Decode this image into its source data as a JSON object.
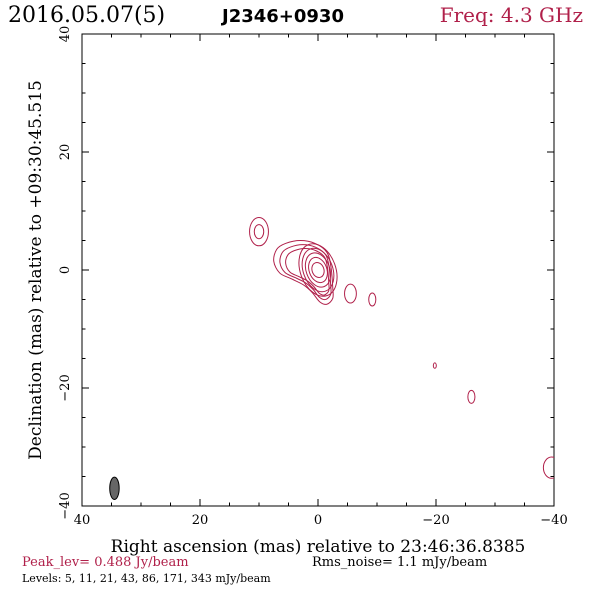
{
  "header": {
    "date": "2016.05.07(5)",
    "source": "J2346+0930",
    "freq": "Freq: 4.3 GHz"
  },
  "footer": {
    "peak": "Peak_lev=  0.488 Jy/beam",
    "rms": "Rms_noise=   1.1 mJy/beam",
    "levels": "Levels:   5,  11,  21,  43,  86,  171,  343 mJy/beam"
  },
  "colors": {
    "accent": "#b0204a",
    "contour": "#b0204a",
    "beam": "#666666"
  },
  "chart_data": {
    "type": "contour",
    "xlabel": "Right ascension (mas) relative to 23:46:36.8385",
    "ylabel": "Declination (mas) relative to +09:30:45.515",
    "xlim": [
      40,
      -40
    ],
    "ylim": [
      -40,
      40
    ],
    "x_ticks": [
      40,
      20,
      0,
      -20,
      -40
    ],
    "y_ticks": [
      -40,
      -20,
      0,
      20,
      40
    ],
    "levels_mJy": [
      5,
      11,
      21,
      43,
      86,
      171,
      343
    ],
    "peak_Jy_per_beam": 0.488,
    "rms_mJy_per_beam": 1.1,
    "beam": {
      "x": 34.5,
      "y": -37.0,
      "major": 3.8,
      "minor": 1.6,
      "pa_deg": 0
    },
    "components": [
      {
        "name": "core",
        "x": 0,
        "y": 0,
        "contours": [
          {
            "rx": 1.0,
            "ry": 1.3,
            "angle": -20
          },
          {
            "rx": 1.5,
            "ry": 2.2,
            "angle": -20
          },
          {
            "rx": 2.0,
            "ry": 3.0,
            "angle": -20
          },
          {
            "rx": 2.5,
            "ry": 3.8,
            "angle": -20
          },
          {
            "rx": 3.0,
            "ry": 4.6,
            "angle": -20
          }
        ]
      },
      {
        "name": "jet",
        "points": [
          [
            7.5,
            1.5
          ],
          [
            7,
            3.5
          ],
          [
            5.5,
            4.5
          ],
          [
            3,
            5.0
          ],
          [
            0.5,
            4.5
          ],
          [
            -1.5,
            3
          ],
          [
            -2.2,
            0.5
          ],
          [
            -2.5,
            -3
          ],
          [
            -2.5,
            -4.8
          ],
          [
            -1.5,
            -5.8
          ],
          [
            -0.3,
            -5.4
          ],
          [
            1,
            -3.8
          ],
          [
            2.5,
            -2.5
          ],
          [
            4.5,
            -1.5
          ],
          [
            6.5,
            -0.5
          ]
        ],
        "scales": [
          1.0,
          0.86,
          0.73
        ]
      },
      {
        "name": "north-blob",
        "x": 10,
        "y": 6.5,
        "contours": [
          {
            "rx": 1.6,
            "ry": 2.4,
            "angle": 0
          },
          {
            "rx": 0.8,
            "ry": 1.2,
            "angle": 0
          }
        ]
      },
      {
        "name": "blob-east",
        "x": -5.5,
        "y": -4.0,
        "contours": [
          {
            "rx": 1.0,
            "ry": 1.6,
            "angle": 0
          }
        ]
      },
      {
        "name": "blob-far",
        "x": -9.2,
        "y": -5.0,
        "contours": [
          {
            "rx": 0.6,
            "ry": 1.1,
            "angle": 0
          }
        ]
      },
      {
        "name": "blob-small",
        "x": -19.8,
        "y": -16.2,
        "contours": [
          {
            "rx": 0.25,
            "ry": 0.45,
            "angle": 0
          }
        ]
      },
      {
        "name": "blob-south",
        "x": -26.0,
        "y": -21.5,
        "contours": [
          {
            "rx": 0.6,
            "ry": 1.1,
            "angle": 0
          }
        ]
      },
      {
        "name": "edge-blob",
        "x": -39.6,
        "y": -33.5,
        "contours": [
          {
            "rx": 1.4,
            "ry": 1.8,
            "angle": 0
          }
        ]
      }
    ]
  }
}
